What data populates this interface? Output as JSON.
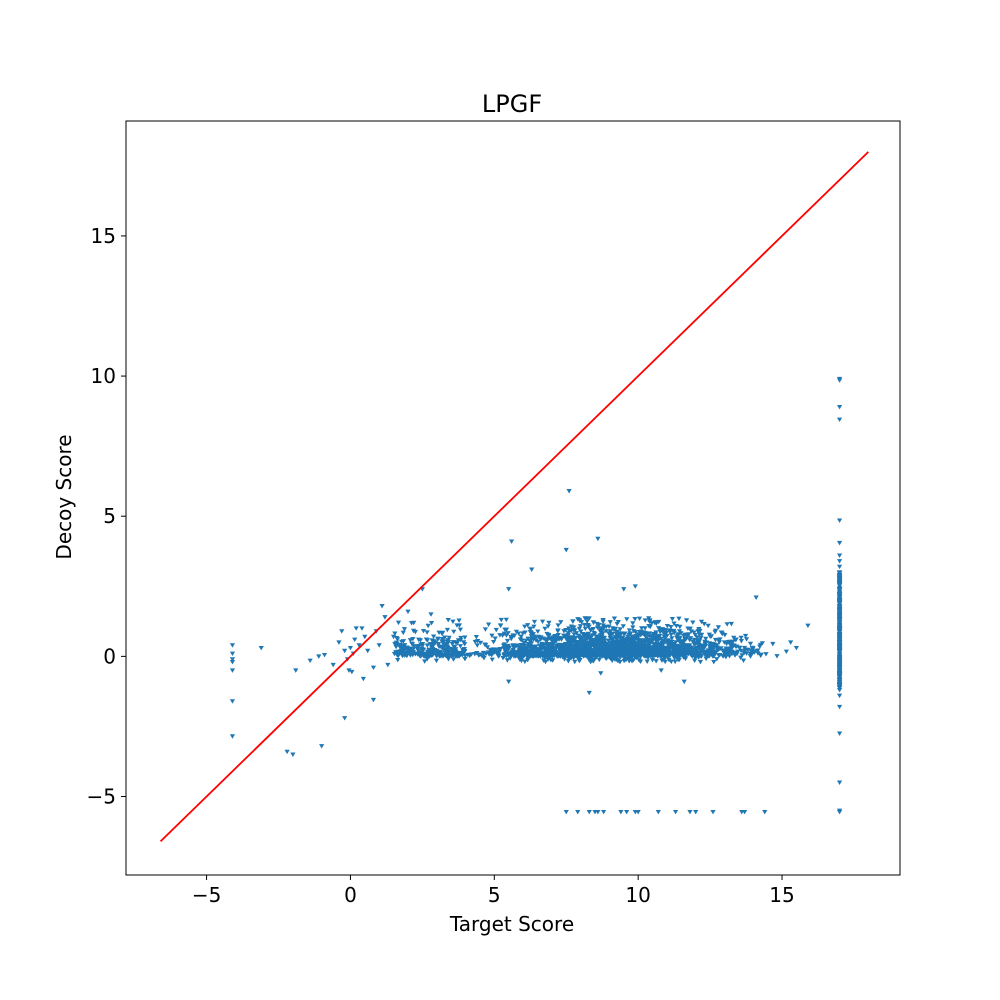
{
  "chart_data": {
    "type": "scatter",
    "title": "LPGF",
    "xlabel": "Target Score",
    "ylabel": "Decoy Score",
    "xlim": [
      -7.8,
      19.1
    ],
    "ylim": [
      -7.8,
      19.1
    ],
    "xticks": [
      -5,
      0,
      5,
      10,
      15
    ],
    "yticks": [
      -5,
      0,
      5,
      10,
      15
    ],
    "grid": false,
    "marker": "triangle-down",
    "colors": {
      "points": "#1f77b4",
      "diagonal": "#ff0000"
    },
    "diagonal_line": {
      "x": [
        -6.6,
        18.0
      ],
      "y": [
        -6.6,
        18.0
      ]
    },
    "points": [
      [
        -4.1,
        0.4
      ],
      [
        -4.1,
        0.1
      ],
      [
        -4.1,
        -0.1
      ],
      [
        -4.1,
        -0.2
      ],
      [
        -4.1,
        -0.5
      ],
      [
        -4.1,
        -1.6
      ],
      [
        -4.1,
        -2.85
      ],
      [
        -3.1,
        0.3
      ],
      [
        -2.2,
        -3.4
      ],
      [
        -2.0,
        -3.5
      ],
      [
        -1.9,
        -0.5
      ],
      [
        -1.4,
        -0.15
      ],
      [
        -1.1,
        0.0
      ],
      [
        -1.0,
        -3.2
      ],
      [
        -0.9,
        0.05
      ],
      [
        -0.6,
        -0.3
      ],
      [
        -0.4,
        0.5
      ],
      [
        -0.3,
        0.9
      ],
      [
        -0.2,
        0.2
      ],
      [
        -0.2,
        -2.2
      ],
      [
        -0.1,
        -0.1
      ],
      [
        0.0,
        0.3
      ],
      [
        -0.05,
        -0.5
      ],
      [
        0.05,
        -0.55
      ],
      [
        0.1,
        0.1
      ],
      [
        0.15,
        0.6
      ],
      [
        0.2,
        1.0
      ],
      [
        0.3,
        0.4
      ],
      [
        0.4,
        1.0
      ],
      [
        0.45,
        -0.8
      ],
      [
        0.5,
        0.7
      ],
      [
        0.6,
        0.2
      ],
      [
        0.8,
        -0.4
      ],
      [
        0.8,
        -1.55
      ],
      [
        0.9,
        0.9
      ],
      [
        1.0,
        0.4
      ],
      [
        1.1,
        1.8
      ],
      [
        1.2,
        1.4
      ],
      [
        1.3,
        -0.3
      ],
      [
        1.5,
        0.7
      ],
      [
        2.0,
        1.6
      ],
      [
        2.2,
        1.2
      ],
      [
        2.5,
        2.4
      ],
      [
        2.8,
        1.5
      ],
      [
        3.4,
        1.3
      ],
      [
        5.5,
        -0.9
      ],
      [
        5.5,
        2.4
      ],
      [
        5.6,
        4.1
      ],
      [
        6.3,
        3.1
      ],
      [
        7.5,
        3.8
      ],
      [
        7.6,
        5.9
      ],
      [
        8.6,
        4.2
      ],
      [
        8.3,
        -1.3
      ],
      [
        8.7,
        -0.6
      ],
      [
        10.8,
        -0.5
      ],
      [
        11.6,
        -0.9
      ],
      [
        9.5,
        2.4
      ],
      [
        9.9,
        2.5
      ],
      [
        14.1,
        2.1
      ],
      [
        15.9,
        1.1
      ],
      [
        15.3,
        0.5
      ],
      [
        15.5,
        0.3
      ],
      [
        7.5,
        -5.55
      ],
      [
        7.9,
        -5.55
      ],
      [
        8.3,
        -5.55
      ],
      [
        8.5,
        -5.55
      ],
      [
        8.6,
        -5.55
      ],
      [
        8.8,
        -5.55
      ],
      [
        9.4,
        -5.55
      ],
      [
        9.6,
        -5.55
      ],
      [
        9.9,
        -5.55
      ],
      [
        10.0,
        -5.55
      ],
      [
        10.7,
        -5.55
      ],
      [
        11.3,
        -5.55
      ],
      [
        11.8,
        -5.55
      ],
      [
        12.0,
        -5.55
      ],
      [
        12.6,
        -5.55
      ],
      [
        13.6,
        -5.55
      ],
      [
        13.7,
        -5.55
      ],
      [
        14.4,
        -5.55
      ],
      [
        17.0,
        9.9
      ],
      [
        17.0,
        9.85
      ],
      [
        17.0,
        8.9
      ],
      [
        17.0,
        8.45
      ],
      [
        17.0,
        4.85
      ],
      [
        17.0,
        4.05
      ],
      [
        17.0,
        3.6
      ],
      [
        17.0,
        3.4
      ],
      [
        17.0,
        3.2
      ],
      [
        17.0,
        3.0
      ],
      [
        17.0,
        2.8
      ],
      [
        17.0,
        2.6
      ],
      [
        17.0,
        2.4
      ],
      [
        17.0,
        2.2
      ],
      [
        17.0,
        2.0
      ],
      [
        17.0,
        1.8
      ],
      [
        17.0,
        1.6
      ],
      [
        17.0,
        1.4
      ],
      [
        17.0,
        1.2
      ],
      [
        17.0,
        1.0
      ],
      [
        17.0,
        0.8
      ],
      [
        17.0,
        0.6
      ],
      [
        17.0,
        0.4
      ],
      [
        17.0,
        0.2
      ],
      [
        17.0,
        0.0
      ],
      [
        17.0,
        -0.2
      ],
      [
        17.0,
        -0.4
      ],
      [
        17.0,
        -0.6
      ],
      [
        17.0,
        -0.8
      ],
      [
        17.0,
        -1.0
      ],
      [
        17.0,
        -1.2
      ],
      [
        17.0,
        -1.4
      ],
      [
        17.0,
        -1.8
      ],
      [
        17.0,
        -2.75
      ],
      [
        17.0,
        -4.5
      ],
      [
        17.0,
        -5.5
      ],
      [
        17.0,
        -5.55
      ]
    ],
    "dense_cluster": {
      "x_range": [
        1.5,
        15.5
      ],
      "y_range": [
        0.0,
        2.0
      ],
      "peak_x": 7.5,
      "count": 2600
    }
  }
}
